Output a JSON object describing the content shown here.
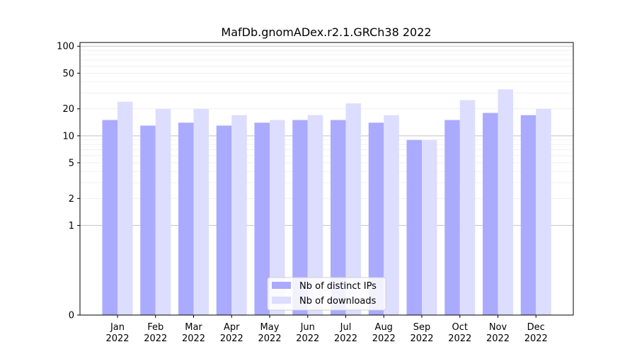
{
  "chart_data": {
    "type": "bar",
    "title": "MafDb.gnomADex.r2.1.GRCh38 2022",
    "xlabel": "",
    "ylabel": "",
    "y_scale": "symlog",
    "ylim": [
      0,
      110
    ],
    "y_ticks": [
      0,
      1,
      2,
      5,
      10,
      20,
      50,
      100
    ],
    "grid": "horizontal",
    "legend_position": "bottom-center",
    "categories": [
      [
        "Jan",
        "2022"
      ],
      [
        "Feb",
        "2022"
      ],
      [
        "Mar",
        "2022"
      ],
      [
        "Apr",
        "2022"
      ],
      [
        "May",
        "2022"
      ],
      [
        "Jun",
        "2022"
      ],
      [
        "Jul",
        "2022"
      ],
      [
        "Aug",
        "2022"
      ],
      [
        "Sep",
        "2022"
      ],
      [
        "Oct",
        "2022"
      ],
      [
        "Nov",
        "2022"
      ],
      [
        "Dec",
        "2022"
      ]
    ],
    "series": [
      {
        "name": "Nb of distinct IPs",
        "color": "#aaaaff",
        "values": [
          15,
          13,
          14,
          13,
          14,
          15,
          15,
          14,
          9,
          15,
          18,
          17
        ]
      },
      {
        "name": "Nb of downloads",
        "color": "#ddddff",
        "values": [
          24,
          20,
          20,
          17,
          15,
          17,
          23,
          17,
          9,
          25,
          33,
          20
        ]
      }
    ]
  }
}
